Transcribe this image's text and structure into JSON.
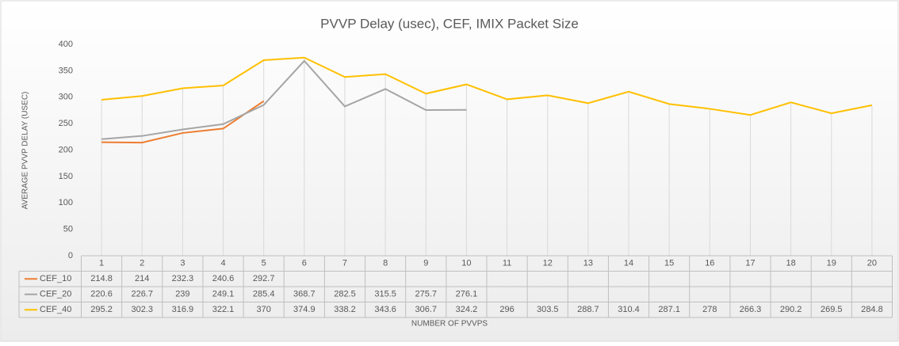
{
  "chart_data": {
    "type": "line",
    "title": "PVVP Delay (usec), CEF, IMIX Packet Size",
    "x_label": "NUMBER OF PVVPS",
    "y_label": "AVERAGE PVVP DELAY (USEC)",
    "categories": [
      1,
      2,
      3,
      4,
      5,
      6,
      7,
      8,
      9,
      10,
      11,
      12,
      13,
      14,
      15,
      16,
      17,
      18,
      19,
      20
    ],
    "series": [
      {
        "name": "CEF_10",
        "color": "#ed7d31",
        "values": [
          214.8,
          214,
          232.3,
          240.6,
          292.7,
          null,
          null,
          null,
          null,
          null,
          null,
          null,
          null,
          null,
          null,
          null,
          null,
          null,
          null,
          null
        ]
      },
      {
        "name": "CEF_20",
        "color": "#a5a5a5",
        "values": [
          220.6,
          226.7,
          239,
          249.1,
          285.4,
          368.7,
          282.5,
          315.5,
          275.7,
          276.1,
          null,
          null,
          null,
          null,
          null,
          null,
          null,
          null,
          null,
          null
        ]
      },
      {
        "name": "CEF_40",
        "color": "#ffc000",
        "values": [
          295.2,
          302.3,
          316.9,
          322.1,
          370,
          374.9,
          338.2,
          343.6,
          306.7,
          324.2,
          296,
          303.5,
          288.7,
          310.4,
          287.1,
          278,
          266.3,
          290.2,
          269.5,
          284.8
        ]
      }
    ],
    "ylim": [
      0,
      400
    ],
    "yticks": [
      0,
      50,
      100,
      150,
      200,
      250,
      300,
      350,
      400
    ],
    "grid": false,
    "data_table": true
  }
}
